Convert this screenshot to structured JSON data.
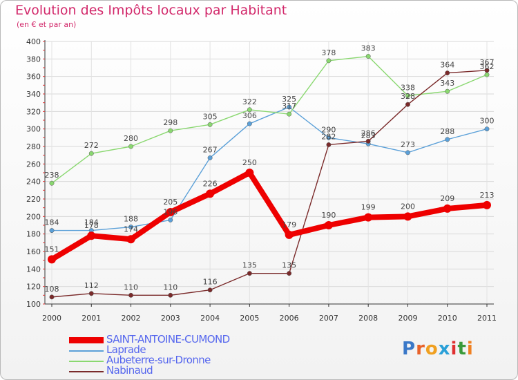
{
  "header": {
    "title": "Evolution des Impôts locaux par Habitant",
    "subtitle": "(en € et par an)"
  },
  "logo": {
    "text": "Proxiti",
    "colors": [
      "#3a78c8",
      "#e8622a",
      "#f0a020",
      "#2aa0d8",
      "#e03030",
      "#3a9a3a",
      "#f08020"
    ]
  },
  "chart_data": {
    "type": "line",
    "title": "Evolution des Impôts locaux par Habitant",
    "subtitle": "(en € et par an)",
    "xlabel": "",
    "ylabel": "",
    "x": [
      "2000",
      "2001",
      "2002",
      "2003",
      "2004",
      "2005",
      "2006",
      "2007",
      "2008",
      "2009",
      "2010",
      "2011"
    ],
    "ylim": [
      100,
      400
    ],
    "yticks": [
      100,
      120,
      140,
      160,
      180,
      200,
      220,
      240,
      260,
      280,
      300,
      320,
      340,
      360,
      380,
      400
    ],
    "grid": true,
    "series": [
      {
        "name": "SAINT-ANTOINE-CUMOND",
        "color": "#ee0000",
        "emphasis": true,
        "values": [
          151,
          178,
          174,
          205,
          226,
          250,
          179,
          190,
          199,
          200,
          209,
          213
        ]
      },
      {
        "name": "Laprade",
        "color": "#5ba0d8",
        "emphasis": false,
        "values": [
          184,
          184,
          188,
          196,
          267,
          306,
          325,
          290,
          283,
          273,
          288,
          300
        ]
      },
      {
        "name": "Aubeterre-sur-Dronne",
        "color": "#8ad870",
        "emphasis": false,
        "values": [
          238,
          272,
          280,
          298,
          305,
          322,
          317,
          378,
          383,
          338,
          343,
          362
        ]
      },
      {
        "name": "Nabinaud",
        "color": "#7a2a2a",
        "emphasis": false,
        "values": [
          108,
          112,
          110,
          110,
          116,
          135,
          135,
          282,
          286,
          328,
          364,
          367
        ]
      }
    ]
  }
}
